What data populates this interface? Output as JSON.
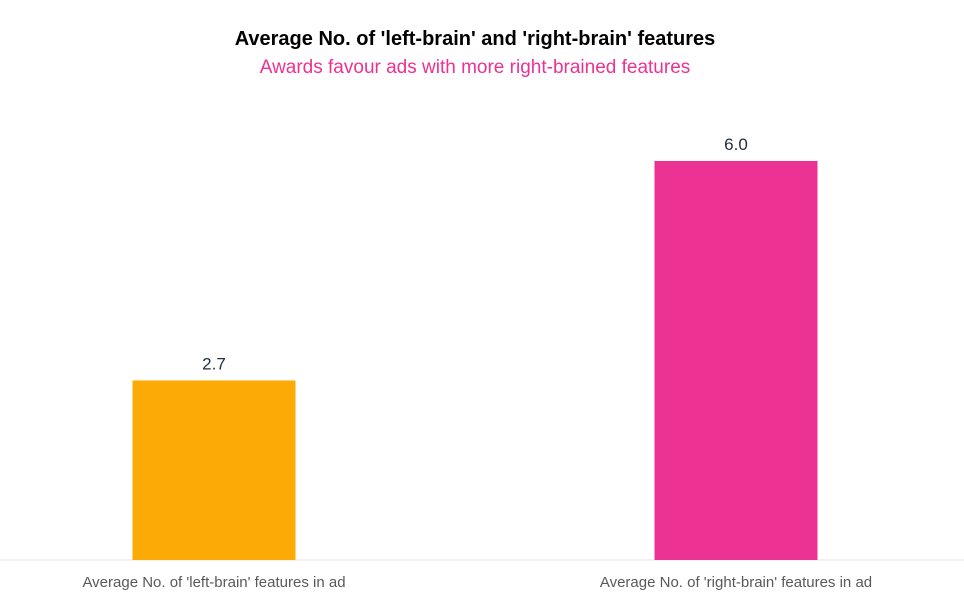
{
  "chart_data": {
    "type": "bar",
    "title": "Average No. of 'left-brain' and 'right-brain' features",
    "subtitle": "Awards favour ads with more right-brained features",
    "categories": [
      "Average No. of 'left-brain' features in ad",
      "Average No. of 'right-brain' features in ad"
    ],
    "values": [
      2.7,
      6.0
    ],
    "data_labels": [
      "2.7",
      "6.0"
    ],
    "bar_colors": [
      "#fcab06",
      "#ec3292"
    ],
    "ylim": [
      0,
      6.0
    ],
    "grid": false,
    "legend": "none"
  }
}
